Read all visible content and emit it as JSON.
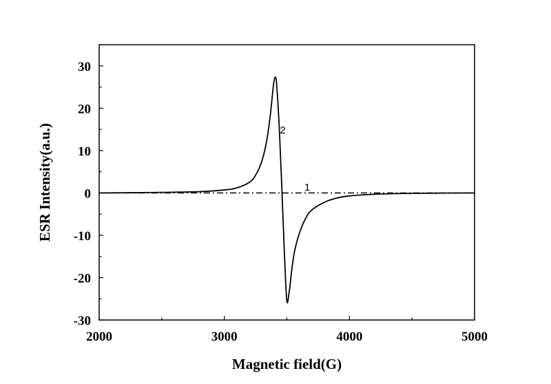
{
  "chart_data": {
    "type": "line",
    "title": "",
    "xlabel": "Magnetic field(G)",
    "ylabel": "ESR Intensity(a.u.)",
    "xlim": [
      2000,
      5000
    ],
    "ylim": [
      -30,
      35
    ],
    "x_ticks": [
      2000,
      3000,
      4000,
      5000
    ],
    "x_tick_labels": [
      "2000",
      "3000",
      "4000",
      "5000"
    ],
    "y_ticks": [
      -30,
      -20,
      -10,
      0,
      10,
      20,
      30
    ],
    "y_tick_labels": [
      "-30",
      "-20",
      "-10",
      "0",
      "10",
      "20",
      "30"
    ],
    "grid": false,
    "legend": "none",
    "series": [
      {
        "label": "1",
        "style": "dash-dot",
        "x": [
          2000,
          5000
        ],
        "y": [
          0,
          0
        ]
      },
      {
        "label": "2",
        "style": "solid",
        "x": [
          2000,
          2400,
          2800,
          3000,
          3100,
          3200,
          3250,
          3300,
          3340,
          3370,
          3395,
          3410,
          3420,
          3440,
          3460,
          3480,
          3500,
          3520,
          3540,
          3560,
          3600,
          3650,
          3700,
          3800,
          3900,
          4000,
          4200,
          4500,
          5000
        ],
        "y": [
          0,
          0.1,
          0.3,
          0.7,
          1.2,
          2.5,
          4.2,
          7.5,
          12.5,
          19.0,
          26.0,
          27.3,
          25.0,
          15.0,
          1.0,
          -14.0,
          -25.5,
          -23.0,
          -18.0,
          -14.0,
          -9.5,
          -6.0,
          -4.0,
          -2.2,
          -1.2,
          -0.7,
          -0.3,
          -0.1,
          0
        ]
      }
    ],
    "annotations": [
      {
        "text": "2",
        "x": 3445,
        "y": 15
      },
      {
        "text": "1",
        "x": 3640,
        "y": 1.5
      }
    ]
  }
}
